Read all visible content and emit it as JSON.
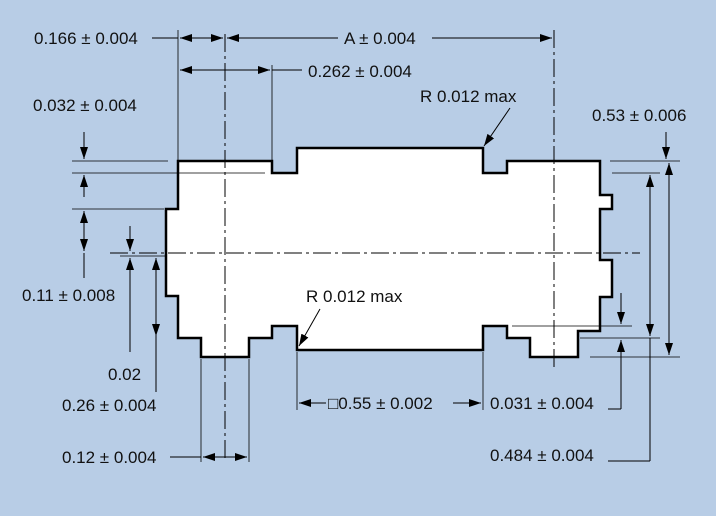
{
  "colors": {
    "background": "#b8cde6",
    "part_fill": "#ffffff",
    "ink": "#111111"
  },
  "dimensions": {
    "d_0166": "0.166 ± 0.004",
    "d_A": "A ± 0.004",
    "d_0262": "0.262 ± 0.004",
    "d_radius_top": "R 0.012  max",
    "d_0032": "0.032 ± 0.004",
    "d_053": "0.53 ± 0.006",
    "d_011": "0.11 ± 0.008",
    "d_radius_bottom": "R 0.012 max",
    "d_002": "0.02",
    "d_026": "0.26 ± 0.004",
    "d_055": "□0.55 ± 0.002",
    "d_0031": "0.031 ± 0.004",
    "d_012": "0.12 ± 0.004",
    "d_0484": "0.484 ± 0.004"
  }
}
